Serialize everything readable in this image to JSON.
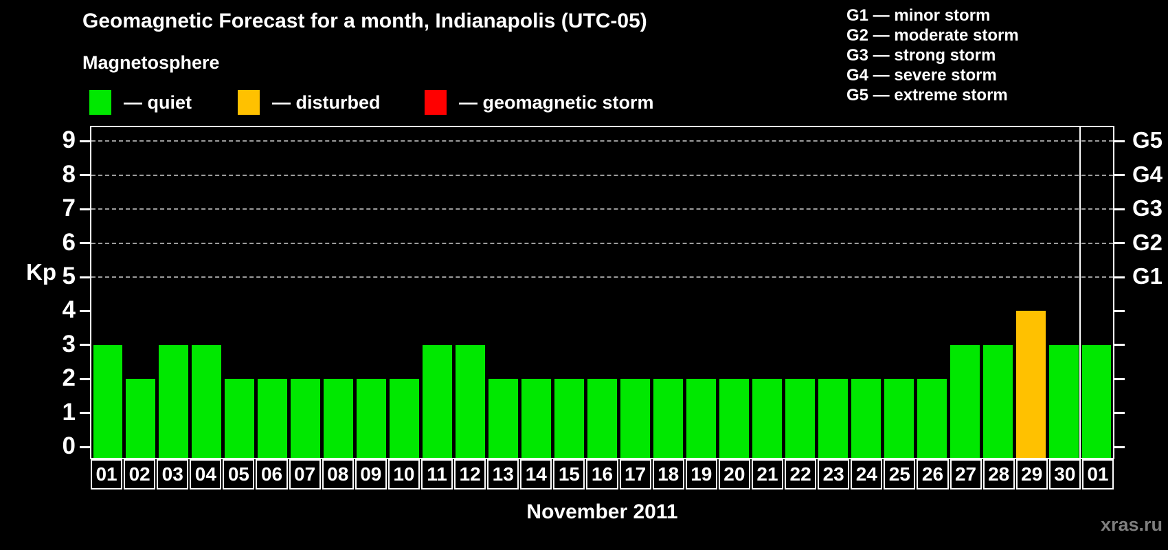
{
  "title": "Geomagnetic Forecast for a month, Indianapolis (UTC-05)",
  "legend": {
    "heading": "Magnetosphere",
    "items": [
      {
        "name": "quiet",
        "label": "— quiet",
        "color": "#00E800"
      },
      {
        "name": "disturbed",
        "label": "— disturbed",
        "color": "#FFC100"
      },
      {
        "name": "storm",
        "label": "— geomagnetic storm",
        "color": "#FF0000"
      }
    ]
  },
  "g_legend": {
    "lines": [
      "G1 — minor storm",
      "G2 — moderate storm",
      "G3 — strong storm",
      "G4 — severe storm",
      "G5 — extreme storm"
    ]
  },
  "watermark": "xras.ru",
  "chart_data": {
    "type": "bar",
    "title": "Geomagnetic Forecast for a month, Indianapolis (UTC-05)",
    "xlabel": "November 2011",
    "ylabel": "Kp",
    "categories": [
      "01",
      "02",
      "03",
      "04",
      "05",
      "06",
      "07",
      "08",
      "09",
      "10",
      "11",
      "12",
      "13",
      "14",
      "15",
      "16",
      "17",
      "18",
      "19",
      "20",
      "21",
      "22",
      "23",
      "24",
      "25",
      "26",
      "27",
      "28",
      "29",
      "30",
      "01"
    ],
    "values": [
      3,
      2,
      3,
      3,
      2,
      2,
      2,
      2,
      2,
      2,
      3,
      3,
      2,
      2,
      2,
      2,
      2,
      2,
      2,
      2,
      2,
      2,
      2,
      2,
      2,
      2,
      3,
      3,
      4,
      3,
      3
    ],
    "statuses": [
      "quiet",
      "quiet",
      "quiet",
      "quiet",
      "quiet",
      "quiet",
      "quiet",
      "quiet",
      "quiet",
      "quiet",
      "quiet",
      "quiet",
      "quiet",
      "quiet",
      "quiet",
      "quiet",
      "quiet",
      "quiet",
      "quiet",
      "quiet",
      "quiet",
      "quiet",
      "quiet",
      "quiet",
      "quiet",
      "quiet",
      "quiet",
      "quiet",
      "disturbed",
      "quiet",
      "quiet"
    ],
    "status_colors": {
      "quiet": "#00E800",
      "disturbed": "#FFC100",
      "storm": "#FF0000"
    },
    "ylim": [
      0,
      9
    ],
    "yticks": [
      0,
      1,
      2,
      3,
      4,
      5,
      6,
      7,
      8,
      9
    ],
    "gridlines": [
      5,
      6,
      7,
      8,
      9
    ],
    "right_axis": [
      {
        "value": 5,
        "label": "G1"
      },
      {
        "value": 6,
        "label": "G2"
      },
      {
        "value": 7,
        "label": "G3"
      },
      {
        "value": 8,
        "label": "G4"
      },
      {
        "value": 9,
        "label": "G5"
      }
    ],
    "month_separator_after_index": 29,
    "grid": "dashed horizontal lines at storm levels only",
    "legend_position": "top",
    "background": "#000000"
  }
}
